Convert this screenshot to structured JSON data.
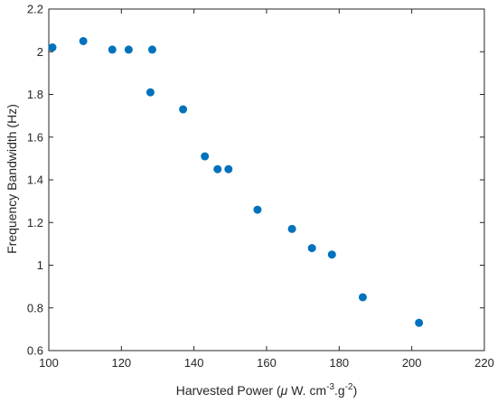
{
  "chart_data": {
    "type": "scatter",
    "xlabel": {
      "main": "Harvested Power (",
      "mu": "μ",
      "unit1": " W. cm",
      "exp1": "-3",
      "unit2": ".g",
      "exp2": "-2",
      "close": ")"
    },
    "ylabel": "Frequency Bandwidth (Hz)",
    "xlim": [
      100,
      220
    ],
    "ylim": [
      0.6,
      2.2
    ],
    "x_ticks": [
      "100",
      "120",
      "140",
      "160",
      "180",
      "200",
      "220"
    ],
    "y_ticks": [
      "0.6",
      "0.8",
      "1",
      "1.2",
      "1.4",
      "1.6",
      "1.8",
      "2",
      "2.2"
    ],
    "grid": false,
    "marker_color": "#0072BD",
    "points": [
      {
        "x": 101.0,
        "y": 2.02
      },
      {
        "x": 109.5,
        "y": 2.05
      },
      {
        "x": 117.5,
        "y": 2.01
      },
      {
        "x": 122.0,
        "y": 2.01
      },
      {
        "x": 128.5,
        "y": 2.01
      },
      {
        "x": 128.0,
        "y": 1.81
      },
      {
        "x": 137.0,
        "y": 1.73
      },
      {
        "x": 143.0,
        "y": 1.51
      },
      {
        "x": 146.5,
        "y": 1.45
      },
      {
        "x": 149.5,
        "y": 1.45
      },
      {
        "x": 157.5,
        "y": 1.26
      },
      {
        "x": 167.0,
        "y": 1.17
      },
      {
        "x": 172.5,
        "y": 1.08
      },
      {
        "x": 178.0,
        "y": 1.05
      },
      {
        "x": 186.5,
        "y": 0.85
      },
      {
        "x": 202.0,
        "y": 0.73
      }
    ]
  }
}
